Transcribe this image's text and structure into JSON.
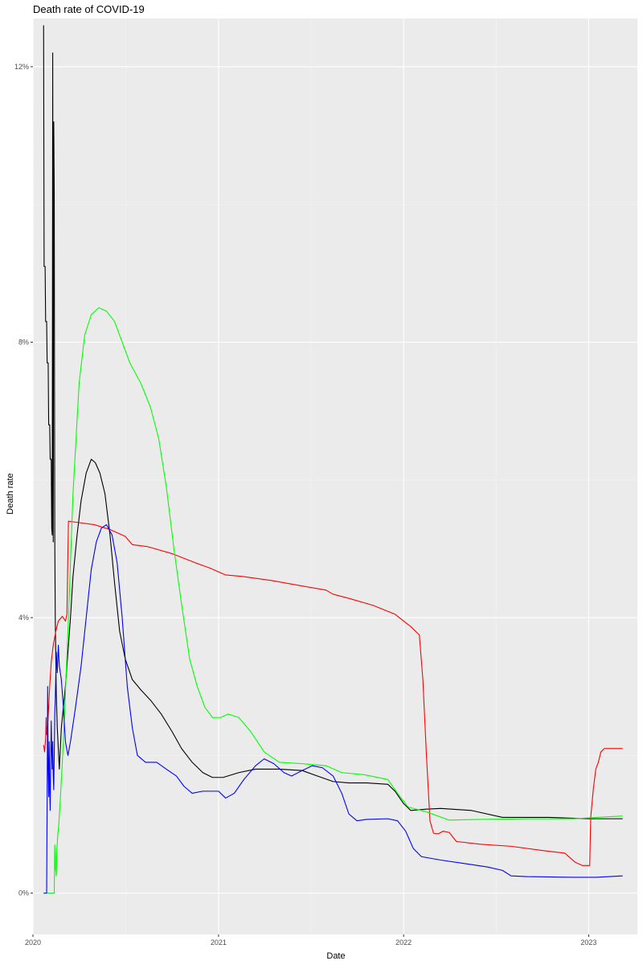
{
  "chart_data": {
    "type": "line",
    "title": "Death rate of COVID-19",
    "xlabel": "Date",
    "ylabel": "Death rate",
    "x_ticks": [
      "2020",
      "2021",
      "2022",
      "2023"
    ],
    "y_ticks": [
      "0%",
      "4%",
      "8%",
      "12%"
    ],
    "xlim": [
      "2020-01-01",
      "2023-04-07"
    ],
    "ylim": [
      -0.006,
      0.127
    ],
    "grid": true,
    "legend": "none",
    "series": [
      {
        "color": "#000000",
        "points": [
          [
            "2020-01-22",
            0.126
          ],
          [
            "2020-01-23",
            0.091
          ],
          [
            "2020-01-25",
            0.091
          ],
          [
            "2020-01-26",
            0.083
          ],
          [
            "2020-01-28",
            0.083
          ],
          [
            "2020-01-29",
            0.077
          ],
          [
            "2020-01-31",
            0.077
          ],
          [
            "2020-02-01",
            0.068
          ],
          [
            "2020-02-03",
            0.068
          ],
          [
            "2020-02-04",
            0.063
          ],
          [
            "2020-02-06",
            0.063
          ],
          [
            "2020-02-07",
            0.053
          ],
          [
            "2020-02-08",
            0.052
          ],
          [
            "2020-02-09",
            0.122
          ],
          [
            "2020-02-10",
            0.051
          ],
          [
            "2020-02-11",
            0.112
          ],
          [
            "2020-02-12",
            0.102
          ],
          [
            "2020-02-13",
            0.052
          ],
          [
            "2020-02-14",
            0.04
          ],
          [
            "2020-02-16",
            0.029
          ],
          [
            "2020-02-18",
            0.024
          ],
          [
            "2020-02-20",
            0.021
          ],
          [
            "2020-02-22",
            0.018
          ],
          [
            "2020-02-24",
            0.021
          ],
          [
            "2020-02-26",
            0.024
          ],
          [
            "2020-03-01",
            0.027
          ],
          [
            "2020-03-05",
            0.03
          ],
          [
            "2020-03-10",
            0.035
          ],
          [
            "2020-03-15",
            0.04
          ],
          [
            "2020-03-20",
            0.046
          ],
          [
            "2020-03-28",
            0.052
          ],
          [
            "2020-04-05",
            0.057
          ],
          [
            "2020-04-15",
            0.061
          ],
          [
            "2020-04-25",
            0.063
          ],
          [
            "2020-05-03",
            0.0625
          ],
          [
            "2020-05-12",
            0.061
          ],
          [
            "2020-05-22",
            0.058
          ],
          [
            "2020-06-01",
            0.052
          ],
          [
            "2020-06-10",
            0.045
          ],
          [
            "2020-06-20",
            0.038
          ],
          [
            "2020-07-01",
            0.034
          ],
          [
            "2020-07-15",
            0.031
          ],
          [
            "2020-08-01",
            0.0295
          ],
          [
            "2020-08-20",
            0.028
          ],
          [
            "2020-09-10",
            0.026
          ],
          [
            "2020-10-01",
            0.0235
          ],
          [
            "2020-10-20",
            0.021
          ],
          [
            "2020-11-10",
            0.019
          ],
          [
            "2020-12-01",
            0.0175
          ],
          [
            "2020-12-20",
            0.0168
          ],
          [
            "2021-01-10",
            0.0168
          ],
          [
            "2021-02-10",
            0.0175
          ],
          [
            "2021-03-15",
            0.018
          ],
          [
            "2021-05-01",
            0.018
          ],
          [
            "2021-06-15",
            0.0178
          ],
          [
            "2021-07-15",
            0.017
          ],
          [
            "2021-08-15",
            0.0162
          ],
          [
            "2021-09-15",
            0.016
          ],
          [
            "2021-10-20",
            0.016
          ],
          [
            "2021-12-01",
            0.0158
          ],
          [
            "2021-12-15",
            0.0148
          ],
          [
            "2022-01-01",
            0.013
          ],
          [
            "2022-01-15",
            0.012
          ],
          [
            "2022-02-15",
            0.0122
          ],
          [
            "2022-03-15",
            0.0123
          ],
          [
            "2022-05-15",
            0.012
          ],
          [
            "2022-07-15",
            0.011
          ],
          [
            "2022-10-15",
            0.011
          ],
          [
            "2023-01-01",
            0.0108
          ],
          [
            "2023-03-09",
            0.0108
          ]
        ]
      },
      {
        "color": "#ff0000",
        "points": [
          [
            "2020-01-22",
            0.0215
          ],
          [
            "2020-01-24",
            0.0205
          ],
          [
            "2020-01-26",
            0.0225
          ],
          [
            "2020-01-27",
            0.0255
          ],
          [
            "2020-01-28",
            0.023
          ],
          [
            "2020-01-30",
            0.0245
          ],
          [
            "2020-02-01",
            0.027
          ],
          [
            "2020-02-03",
            0.03
          ],
          [
            "2020-02-06",
            0.0335
          ],
          [
            "2020-02-10",
            0.036
          ],
          [
            "2020-02-15",
            0.038
          ],
          [
            "2020-02-20",
            0.0395
          ],
          [
            "2020-02-28",
            0.0402
          ],
          [
            "2020-03-05",
            0.0395
          ],
          [
            "2020-03-08",
            0.0405
          ],
          [
            "2020-03-11",
            0.054
          ],
          [
            "2020-04-01",
            0.0538
          ],
          [
            "2020-05-01",
            0.0535
          ],
          [
            "2020-06-01",
            0.0528
          ],
          [
            "2020-07-01",
            0.0518
          ],
          [
            "2020-07-15",
            0.0506
          ],
          [
            "2020-08-15",
            0.0503
          ],
          [
            "2020-10-01",
            0.0493
          ],
          [
            "2020-11-15",
            0.048
          ],
          [
            "2020-12-15",
            0.0472
          ],
          [
            "2021-01-15",
            0.0462
          ],
          [
            "2021-02-15",
            0.046
          ],
          [
            "2021-04-15",
            0.0454
          ],
          [
            "2021-06-15",
            0.0446
          ],
          [
            "2021-08-01",
            0.044
          ],
          [
            "2021-08-15",
            0.0434
          ],
          [
            "2021-09-15",
            0.0428
          ],
          [
            "2021-11-01",
            0.0418
          ],
          [
            "2021-12-15",
            0.0405
          ],
          [
            "2022-01-15",
            0.0387
          ],
          [
            "2022-02-01",
            0.0375
          ],
          [
            "2022-02-08",
            0.031
          ],
          [
            "2022-02-15",
            0.02
          ],
          [
            "2022-02-22",
            0.0105
          ],
          [
            "2022-03-01",
            0.0087
          ],
          [
            "2022-03-10",
            0.0086
          ],
          [
            "2022-03-20",
            0.009
          ],
          [
            "2022-04-01",
            0.0088
          ],
          [
            "2022-04-15",
            0.0075
          ],
          [
            "2022-06-01",
            0.0071
          ],
          [
            "2022-08-01",
            0.0068
          ],
          [
            "2022-10-01",
            0.0062
          ],
          [
            "2022-11-15",
            0.0058
          ],
          [
            "2022-12-05",
            0.0045
          ],
          [
            "2022-12-20",
            0.004
          ],
          [
            "2023-01-03",
            0.004
          ],
          [
            "2023-01-05",
            0.011
          ],
          [
            "2023-01-10",
            0.015
          ],
          [
            "2023-01-15",
            0.018
          ],
          [
            "2023-01-20",
            0.019
          ],
          [
            "2023-01-25",
            0.0205
          ],
          [
            "2023-02-01",
            0.021
          ],
          [
            "2023-03-09",
            0.021
          ]
        ]
      },
      {
        "color": "#00ff00",
        "points": [
          [
            "2020-01-22",
            0.0
          ],
          [
            "2020-02-12",
            0.0
          ],
          [
            "2020-02-13",
            0.007
          ],
          [
            "2020-02-14",
            0.004
          ],
          [
            "2020-02-16",
            0.0025
          ],
          [
            "2020-02-17",
            0.006
          ],
          [
            "2020-02-19",
            0.0085
          ],
          [
            "2020-02-21",
            0.01
          ],
          [
            "2020-02-25",
            0.015
          ],
          [
            "2020-03-01",
            0.022
          ],
          [
            "2020-03-10",
            0.038
          ],
          [
            "2020-03-20",
            0.058
          ],
          [
            "2020-04-01",
            0.074
          ],
          [
            "2020-04-12",
            0.081
          ],
          [
            "2020-04-25",
            0.084
          ],
          [
            "2020-05-10",
            0.085
          ],
          [
            "2020-05-25",
            0.0845
          ],
          [
            "2020-06-10",
            0.083
          ],
          [
            "2020-06-25",
            0.08
          ],
          [
            "2020-07-10",
            0.077
          ],
          [
            "2020-08-01",
            0.074
          ],
          [
            "2020-08-20",
            0.0705
          ],
          [
            "2020-09-05",
            0.066
          ],
          [
            "2020-09-20",
            0.059
          ],
          [
            "2020-10-05",
            0.05
          ],
          [
            "2020-10-20",
            0.042
          ],
          [
            "2020-11-05",
            0.034
          ],
          [
            "2020-11-20",
            0.03
          ],
          [
            "2020-12-05",
            0.027
          ],
          [
            "2020-12-20",
            0.0255
          ],
          [
            "2021-01-05",
            0.0255
          ],
          [
            "2021-01-20",
            0.026
          ],
          [
            "2021-02-10",
            0.0255
          ],
          [
            "2021-03-05",
            0.0235
          ],
          [
            "2021-04-01",
            0.0205
          ],
          [
            "2021-05-01",
            0.019
          ],
          [
            "2021-06-15",
            0.0188
          ],
          [
            "2021-08-01",
            0.0185
          ],
          [
            "2021-09-01",
            0.0175
          ],
          [
            "2021-10-15",
            0.0172
          ],
          [
            "2021-12-01",
            0.0165
          ],
          [
            "2021-12-20",
            0.0145
          ],
          [
            "2022-01-10",
            0.0125
          ],
          [
            "2022-02-15",
            0.0118
          ],
          [
            "2022-04-01",
            0.0106
          ],
          [
            "2022-06-01",
            0.0107
          ],
          [
            "2022-09-01",
            0.0108
          ],
          [
            "2022-12-01",
            0.0108
          ],
          [
            "2023-03-09",
            0.0112
          ]
        ]
      },
      {
        "color": "#0000ff",
        "points": [
          [
            "2020-01-22",
            0.0
          ],
          [
            "2020-01-28",
            0.0
          ],
          [
            "2020-01-29",
            0.014
          ],
          [
            "2020-01-30",
            0.03
          ],
          [
            "2020-01-31",
            0.018
          ],
          [
            "2020-02-01",
            0.014
          ],
          [
            "2020-02-02",
            0.022
          ],
          [
            "2020-02-03",
            0.015
          ],
          [
            "2020-02-04",
            0.012
          ],
          [
            "2020-02-05",
            0.019
          ],
          [
            "2020-02-06",
            0.025
          ],
          [
            "2020-02-07",
            0.021
          ],
          [
            "2020-02-08",
            0.018
          ],
          [
            "2020-02-09",
            0.022
          ],
          [
            "2020-02-10",
            0.017
          ],
          [
            "2020-02-11",
            0.015
          ],
          [
            "2020-02-12",
            0.02
          ],
          [
            "2020-02-13",
            0.026
          ],
          [
            "2020-02-14",
            0.028
          ],
          [
            "2020-02-16",
            0.035
          ],
          [
            "2020-02-18",
            0.032
          ],
          [
            "2020-02-20",
            0.036
          ],
          [
            "2020-02-22",
            0.033
          ],
          [
            "2020-02-26",
            0.031
          ],
          [
            "2020-03-01",
            0.027
          ],
          [
            "2020-03-05",
            0.022
          ],
          [
            "2020-03-10",
            0.02
          ],
          [
            "2020-03-15",
            0.022
          ],
          [
            "2020-03-25",
            0.027
          ],
          [
            "2020-04-05",
            0.033
          ],
          [
            "2020-04-15",
            0.04
          ],
          [
            "2020-04-25",
            0.047
          ],
          [
            "2020-05-05",
            0.051
          ],
          [
            "2020-05-15",
            0.053
          ],
          [
            "2020-05-25",
            0.0535
          ],
          [
            "2020-06-05",
            0.052
          ],
          [
            "2020-06-15",
            0.048
          ],
          [
            "2020-06-25",
            0.04
          ],
          [
            "2020-07-05",
            0.03
          ],
          [
            "2020-07-15",
            0.024
          ],
          [
            "2020-07-25",
            0.02
          ],
          [
            "2020-08-10",
            0.019
          ],
          [
            "2020-09-01",
            0.019
          ],
          [
            "2020-09-20",
            0.018
          ],
          [
            "2020-10-10",
            0.017
          ],
          [
            "2020-10-25",
            0.0155
          ],
          [
            "2020-11-10",
            0.0145
          ],
          [
            "2020-12-01",
            0.0148
          ],
          [
            "2021-01-01",
            0.0148
          ],
          [
            "2021-01-15",
            0.0138
          ],
          [
            "2021-02-01",
            0.0145
          ],
          [
            "2021-02-20",
            0.0165
          ],
          [
            "2021-03-15",
            0.0185
          ],
          [
            "2021-04-01",
            0.0195
          ],
          [
            "2021-04-20",
            0.0188
          ],
          [
            "2021-05-10",
            0.0175
          ],
          [
            "2021-05-25",
            0.017
          ],
          [
            "2021-06-15",
            0.0178
          ],
          [
            "2021-07-05",
            0.0185
          ],
          [
            "2021-07-25",
            0.0182
          ],
          [
            "2021-08-15",
            0.017
          ],
          [
            "2021-09-01",
            0.0145
          ],
          [
            "2021-09-15",
            0.0115
          ],
          [
            "2021-10-01",
            0.0105
          ],
          [
            "2021-10-20",
            0.0107
          ],
          [
            "2021-12-01",
            0.0108
          ],
          [
            "2021-12-20",
            0.0105
          ],
          [
            "2022-01-05",
            0.009
          ],
          [
            "2022-01-20",
            0.0065
          ],
          [
            "2022-02-05",
            0.0053
          ],
          [
            "2022-03-15",
            0.0048
          ],
          [
            "2022-05-01",
            0.0043
          ],
          [
            "2022-06-15",
            0.0038
          ],
          [
            "2022-07-15",
            0.0033
          ],
          [
            "2022-08-01",
            0.0025
          ],
          [
            "2022-09-01",
            0.0024
          ],
          [
            "2022-12-01",
            0.0023
          ],
          [
            "2023-01-15",
            0.0023
          ],
          [
            "2023-03-09",
            0.0025
          ]
        ]
      }
    ]
  },
  "theme": {
    "panel_background": "#ebebeb",
    "grid_major": "#ffffff",
    "grid_minor": "#f3f3f3",
    "tick_color": "#333333",
    "tick_label_color": "#4d4d4d",
    "series_colors": [
      "#000000",
      "#ff0000",
      "#00ff00",
      "#0000ff"
    ]
  }
}
